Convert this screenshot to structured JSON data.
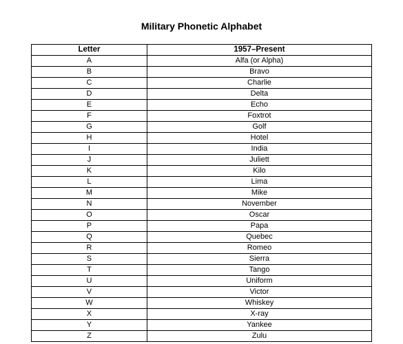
{
  "document": {
    "title": "Military Phonetic Alphabet",
    "title_fontsize": 14,
    "background_color": "#ffffff",
    "text_color": "#000000",
    "border_color": "#000000",
    "cell_fontsize": 11,
    "table": {
      "columns": [
        "Letter",
        "1957–Present"
      ],
      "column_widths_pct": [
        34,
        66
      ],
      "rows": [
        [
          "A",
          "Alfa (or Alpha)"
        ],
        [
          "B",
          "Bravo"
        ],
        [
          "C",
          "Charlie"
        ],
        [
          "D",
          "Delta"
        ],
        [
          "E",
          "Echo"
        ],
        [
          "F",
          "Foxtrot"
        ],
        [
          "G",
          "Golf"
        ],
        [
          "H",
          "Hotel"
        ],
        [
          "I",
          "India"
        ],
        [
          "J",
          "Juliett"
        ],
        [
          "K",
          "Kilo"
        ],
        [
          "L",
          "Lima"
        ],
        [
          "M",
          "Mike"
        ],
        [
          "N",
          "November"
        ],
        [
          "O",
          "Oscar"
        ],
        [
          "P",
          "Papa"
        ],
        [
          "Q",
          "Quebec"
        ],
        [
          "R",
          "Romeo"
        ],
        [
          "S",
          "Sierra"
        ],
        [
          "T",
          "Tango"
        ],
        [
          "U",
          "Uniform"
        ],
        [
          "V",
          "Victor"
        ],
        [
          "W",
          "Whiskey"
        ],
        [
          "X",
          "X-ray"
        ],
        [
          "Y",
          "Yankee"
        ],
        [
          "Z",
          "Zulu"
        ]
      ]
    }
  }
}
